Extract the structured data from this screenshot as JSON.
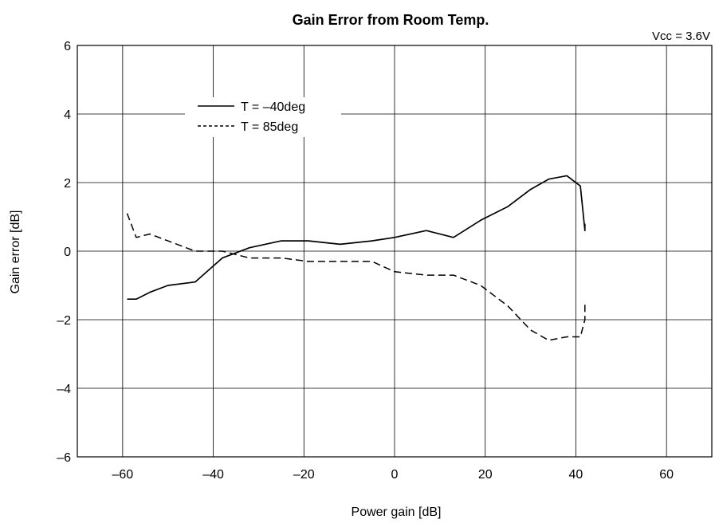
{
  "chart_data": {
    "type": "line",
    "title": "Gain Error from Room Temp.",
    "annotation": "Vcc = 3.6V",
    "xlabel": "Power gain [dB]",
    "ylabel": "Gain error [dB]",
    "xlim": [
      -70,
      70
    ],
    "ylim": [
      -6,
      6
    ],
    "xticks": [
      -60,
      -40,
      -20,
      0,
      20,
      40,
      60
    ],
    "yticks": [
      -6,
      -4,
      -2,
      0,
      2,
      4,
      6
    ],
    "xtick_labels": [
      "–60",
      "–40",
      "–20",
      "0",
      "20",
      "40",
      "60"
    ],
    "ytick_labels": [
      "–6",
      "–4",
      "–2",
      "0",
      "2",
      "4",
      "6"
    ],
    "grid": true,
    "legend_position": "top-left",
    "series": [
      {
        "name": "T = –40deg",
        "style": "solid",
        "color": "#000000",
        "x": [
          -59,
          -57,
          -54,
          -50,
          -44,
          -38,
          -32,
          -25,
          -19,
          -12,
          -5,
          0,
          7,
          13,
          19,
          25,
          30,
          34,
          38,
          41,
          42,
          42
        ],
        "y": [
          -1.4,
          -1.4,
          -1.2,
          -1.0,
          -0.9,
          -0.2,
          0.1,
          0.3,
          0.3,
          0.2,
          0.3,
          0.4,
          0.6,
          0.4,
          0.9,
          1.3,
          1.8,
          2.1,
          2.2,
          1.9,
          0.6,
          0.8
        ]
      },
      {
        "name": "T = 85deg",
        "style": "dashed",
        "color": "#000000",
        "x": [
          -59,
          -57,
          -54,
          -50,
          -44,
          -38,
          -32,
          -25,
          -19,
          -12,
          -5,
          0,
          7,
          13,
          19,
          25,
          30,
          34,
          38,
          41,
          42,
          42
        ],
        "y": [
          1.1,
          0.4,
          0.5,
          0.3,
          0.0,
          0.0,
          -0.2,
          -0.2,
          -0.3,
          -0.3,
          -0.3,
          -0.6,
          -0.7,
          -0.7,
          -1.0,
          -1.6,
          -2.3,
          -2.6,
          -2.5,
          -2.5,
          -2.0,
          -1.5
        ]
      }
    ]
  }
}
